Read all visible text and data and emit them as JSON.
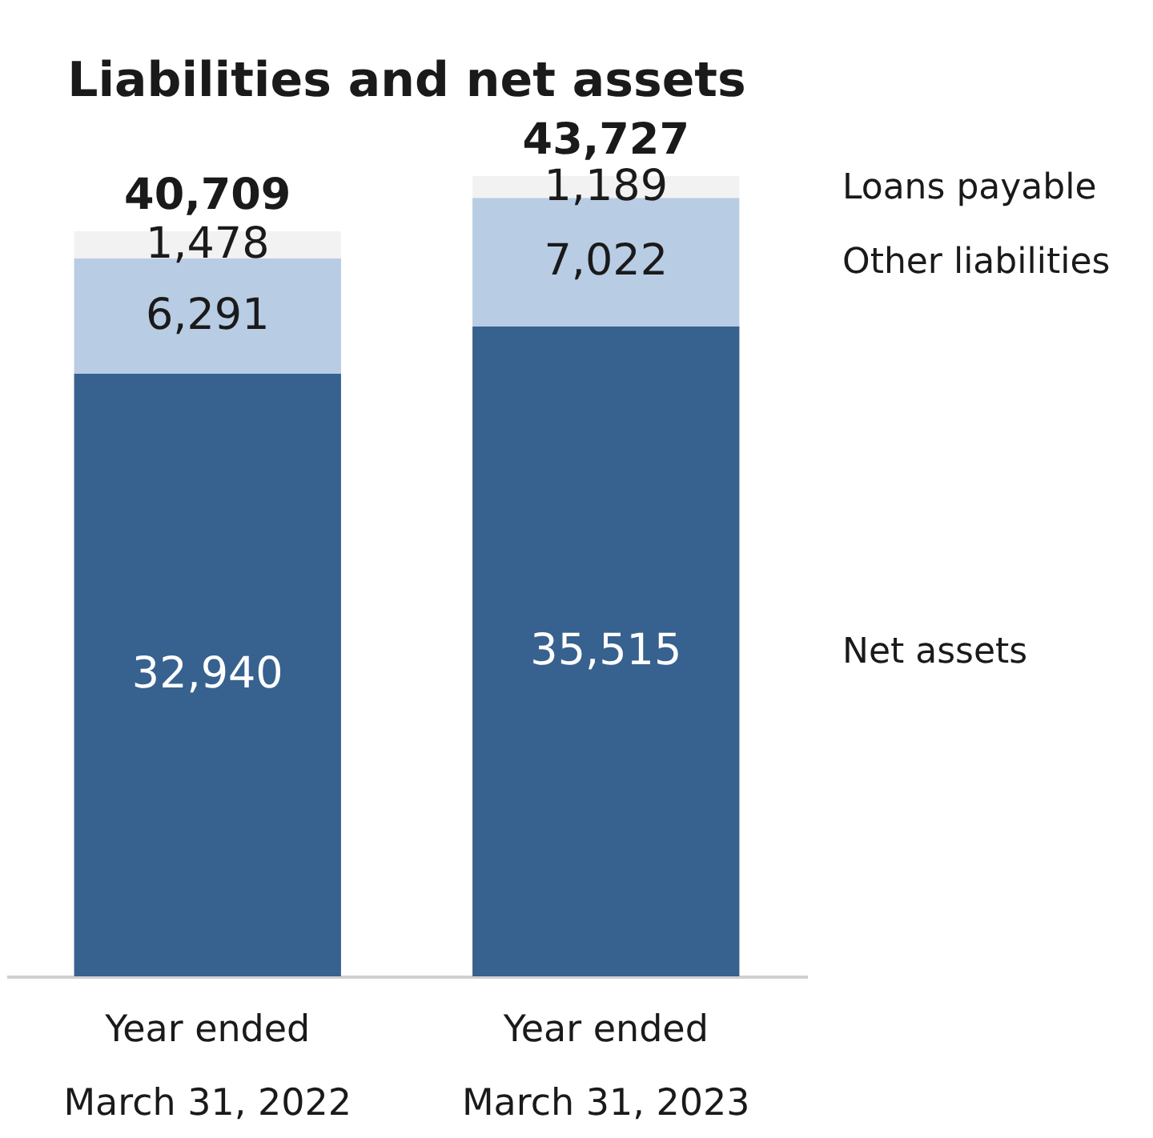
{
  "chart_data": {
    "type": "bar",
    "stacked": true,
    "title": "Liabilities and net assets",
    "categories": [
      "Year ended\nMarch 31, 2022",
      "Year ended\nMarch 31, 2023"
    ],
    "series": [
      {
        "name": "Net assets",
        "color": "#37618f",
        "values": [
          32940,
          35515
        ],
        "value_labels": [
          "32,940",
          "35,515"
        ]
      },
      {
        "name": "Other liabilities",
        "color": "#b8cce4",
        "values": [
          6291,
          7022
        ],
        "value_labels": [
          "6,291",
          "7,022"
        ]
      },
      {
        "name": "Loans payable",
        "color": "#f2f2f2",
        "values": [
          1478,
          1189
        ],
        "value_labels": [
          "1,478",
          "1,189"
        ]
      }
    ],
    "totals": [
      "40,709",
      "43,727"
    ]
  }
}
